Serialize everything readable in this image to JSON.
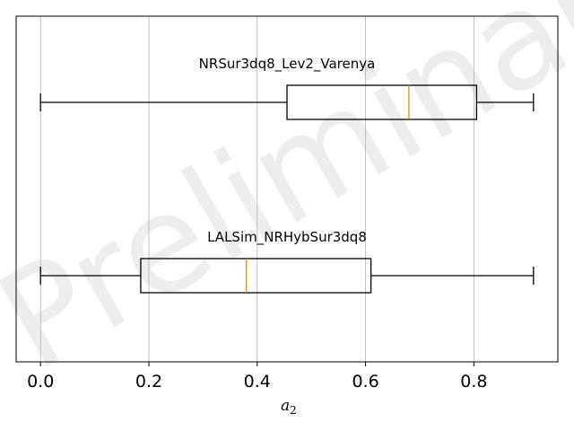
{
  "watermark": "Preliminary",
  "chart_data": {
    "type": "boxplot",
    "orientation": "horizontal",
    "xlabel_base": "a",
    "xlabel_sub": "2",
    "xlim": [
      -0.045,
      0.955
    ],
    "xticks": [
      0.0,
      0.2,
      0.4,
      0.6,
      0.8
    ],
    "xtick_labels": [
      "0.0",
      "0.2",
      "0.4",
      "0.6",
      "0.8"
    ],
    "grid": "vertical",
    "series": [
      {
        "name": "NRSur3dq8_Lev2_Varenya",
        "whisker_low": 0.0,
        "q1": 0.455,
        "median": 0.68,
        "q3": 0.805,
        "whisker_high": 0.91
      },
      {
        "name": "LALSim_NRHybSur3dq8",
        "whisker_low": 0.0,
        "q1": 0.185,
        "median": 0.38,
        "q3": 0.61,
        "whisker_high": 0.91
      }
    ],
    "colors": {
      "box": "#000000",
      "median": "#ff7f0e",
      "grid": "#b0b0b0"
    }
  }
}
